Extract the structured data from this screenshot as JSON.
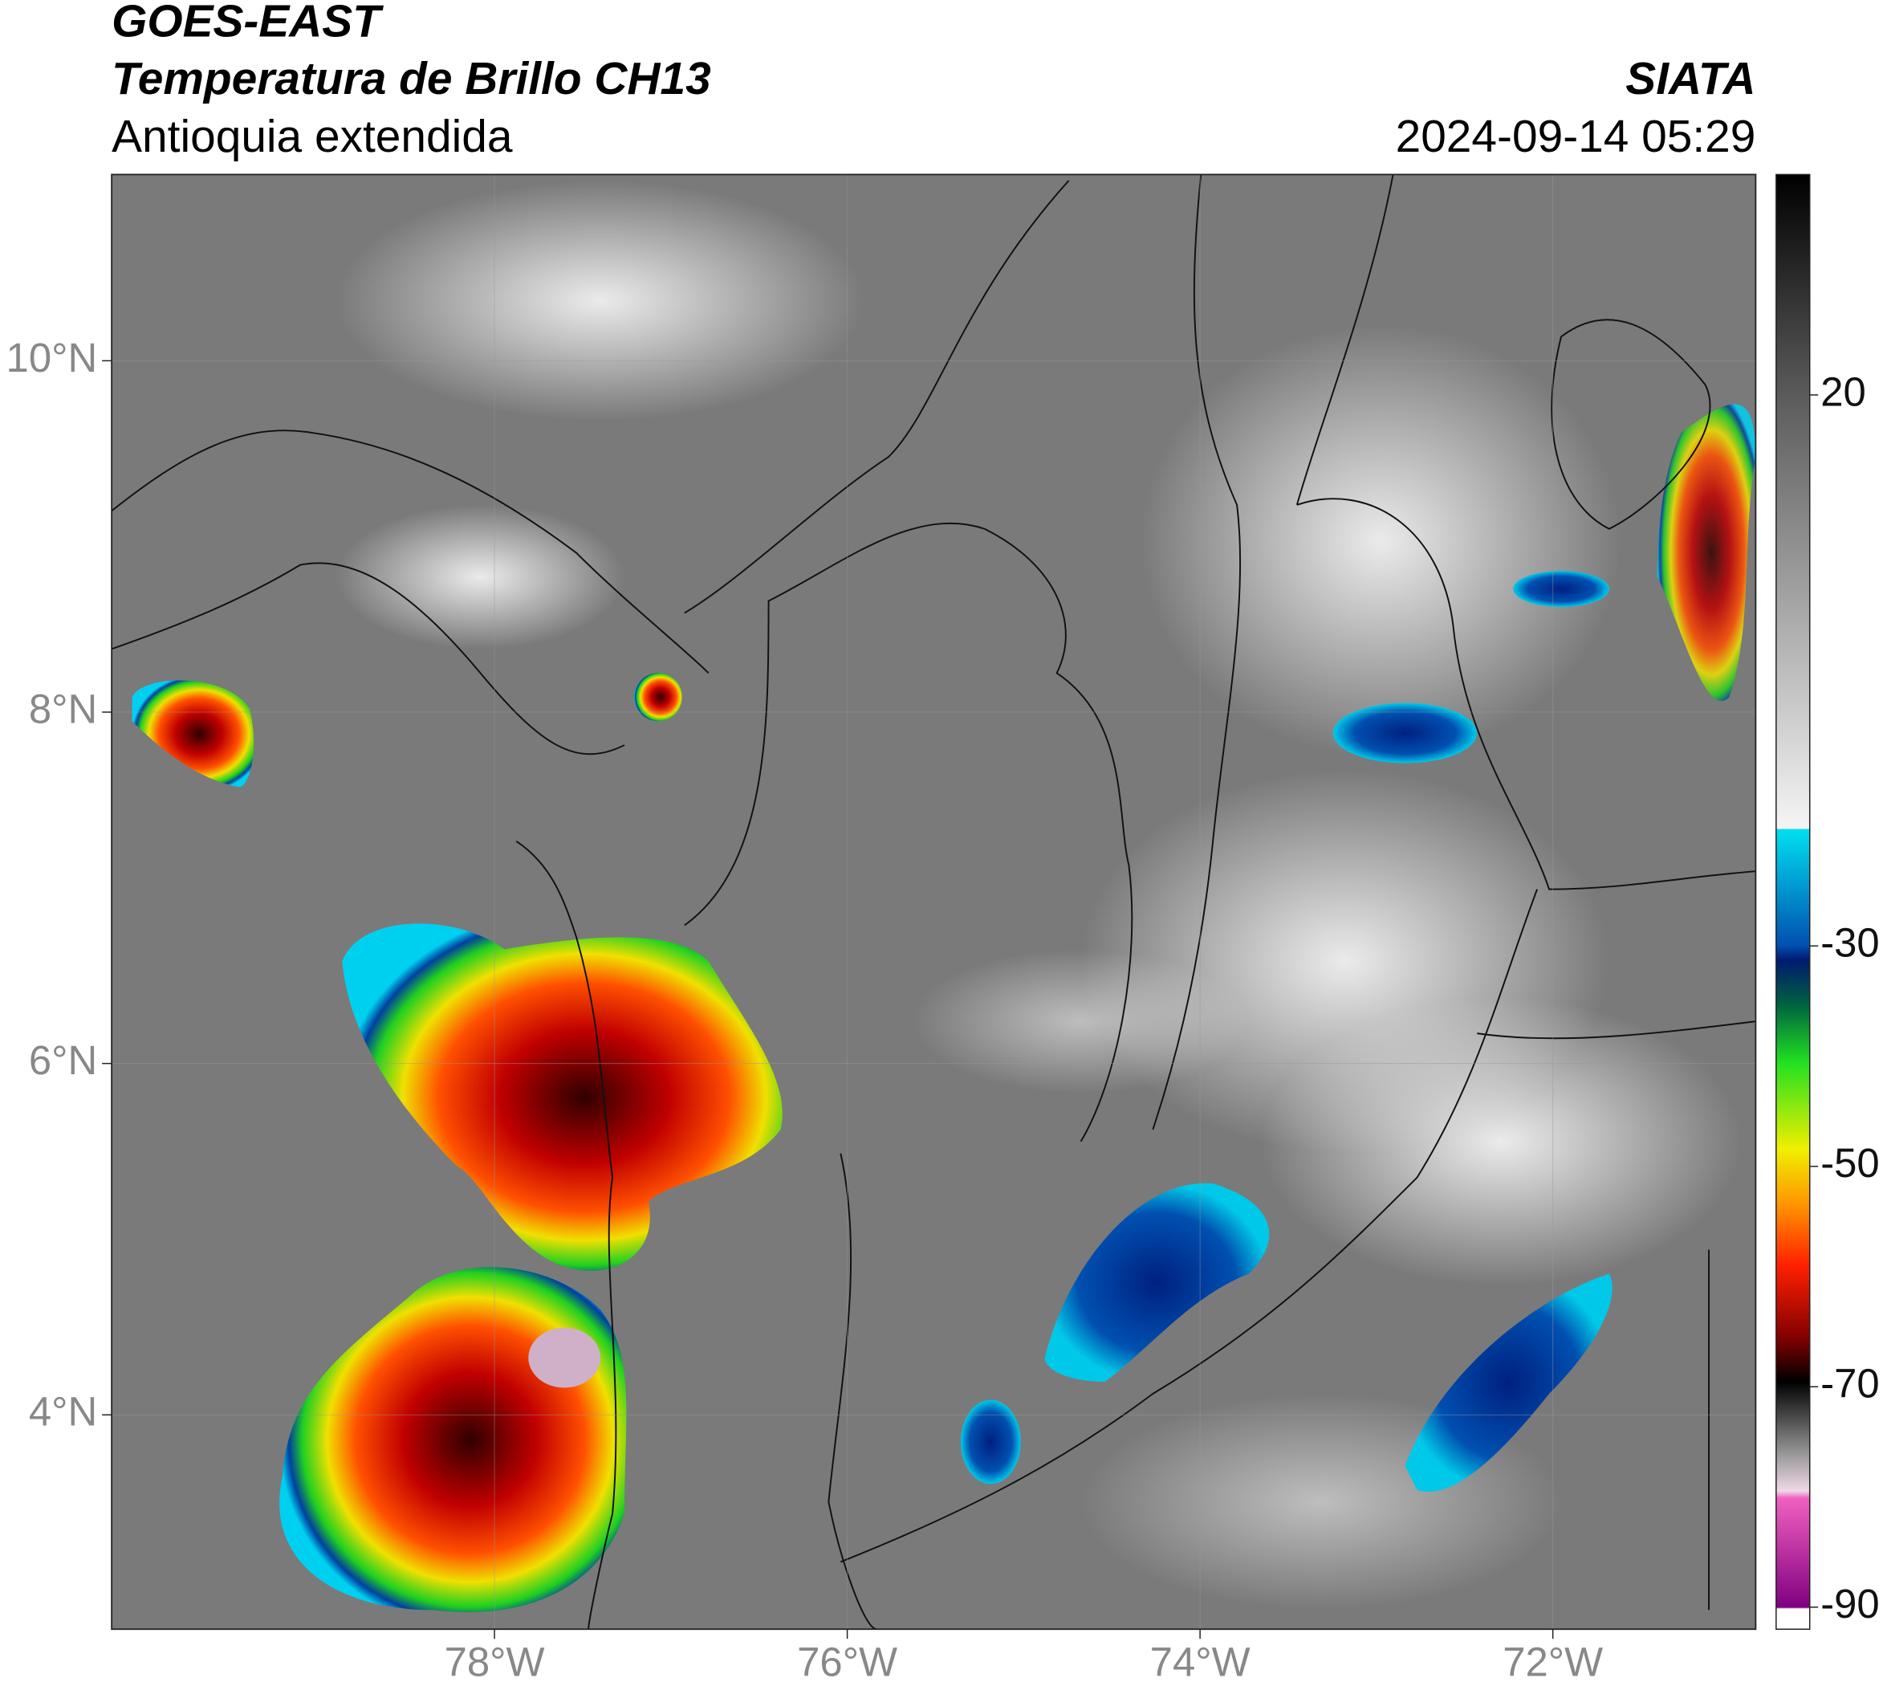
{
  "header": {
    "satellite": "GOES-EAST",
    "product": "Temperatura de Brillo CH13",
    "region": "Antioquia extendida",
    "source": "SIATA",
    "datetime": "2024-09-14 05:29"
  },
  "map": {
    "xlim": [
      -80.17,
      -70.85
    ],
    "ylim": [
      2.78,
      11.06
    ],
    "xticks": [
      {
        "value": -78,
        "label": "78°W"
      },
      {
        "value": -76,
        "label": "76°W"
      },
      {
        "value": -74,
        "label": "74°W"
      },
      {
        "value": -72,
        "label": "72°W"
      }
    ],
    "yticks": [
      {
        "value": 4,
        "label": "4°N"
      },
      {
        "value": 6,
        "label": "6°N"
      },
      {
        "value": 8,
        "label": "8°N"
      },
      {
        "value": 10,
        "label": "10°N"
      }
    ],
    "grid": true
  },
  "colorbar": {
    "lim": [
      -92,
      40
    ],
    "ticks": [
      -90,
      -70,
      -50,
      -30,
      20
    ]
  }
}
